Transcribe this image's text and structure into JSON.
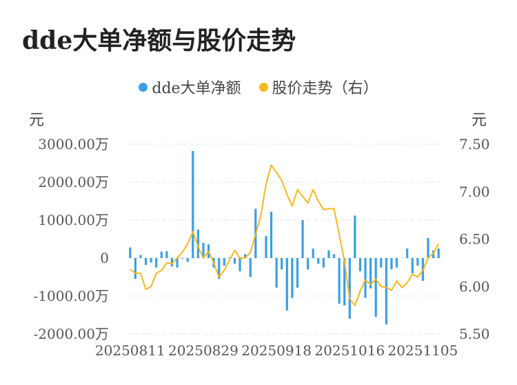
{
  "title": "dde大单净额与股价走势",
  "legend": [
    {
      "label": "dde大单净额",
      "color": "#3a9ee4"
    },
    {
      "label": "股价走势（右）",
      "color": "#f4b71f"
    }
  ],
  "left_unit": "元",
  "right_unit": "元",
  "chart_data": {
    "type": "bar",
    "title": "dde大单净额与股价走势",
    "y_left": {
      "unit": "元",
      "ylim": [
        -2000,
        3000
      ],
      "ticks": [
        3000,
        2000,
        1000,
        0,
        -1000,
        -2000
      ],
      "tick_labels": [
        "3000.00万",
        "2000.00万",
        "1000.00万",
        "0",
        "-1000.00万",
        "-2000.00万"
      ]
    },
    "y_right": {
      "unit": "元",
      "ylim": [
        5.5,
        7.5
      ],
      "ticks": [
        7.5,
        7.0,
        6.5,
        6.0,
        5.5
      ],
      "tick_labels": [
        "7.50",
        "7.00",
        "6.50",
        "6.00",
        "5.50"
      ]
    },
    "x_tick_labels": [
      "20250811",
      "20250829",
      "20250918",
      "20251016",
      "20251105"
    ],
    "x_tick_index": [
      0,
      14,
      28,
      42,
      56
    ],
    "grid": true,
    "legend_position": "top",
    "series": [
      {
        "name": "dde大单净额",
        "type": "bar",
        "color": "#3a9ee4",
        "values": [
          280,
          -550,
          80,
          -180,
          -120,
          -250,
          170,
          180,
          -220,
          -250,
          -20,
          -100,
          2820,
          750,
          400,
          360,
          -250,
          -550,
          -200,
          20,
          -150,
          -350,
          100,
          -500,
          1300,
          0,
          580,
          1220,
          -780,
          -300,
          -1380,
          -1050,
          -780,
          1000,
          -300,
          250,
          -150,
          -250,
          200,
          100,
          -1200,
          -1250,
          -1600,
          1120,
          -350,
          -1050,
          -800,
          -1550,
          -250,
          -1750,
          -300,
          -250,
          0,
          250,
          -400,
          -200,
          -600,
          530,
          200,
          250
        ]
      },
      {
        "name": "股价走势（右）",
        "type": "line",
        "color": "#f4b71f",
        "values": [
          6.18,
          6.14,
          6.14,
          5.97,
          6.0,
          6.14,
          6.17,
          6.25,
          6.24,
          6.3,
          6.36,
          6.45,
          6.58,
          6.42,
          6.3,
          6.37,
          6.25,
          6.1,
          6.17,
          6.28,
          6.38,
          6.3,
          6.3,
          6.36,
          6.55,
          6.75,
          7.08,
          7.28,
          7.2,
          7.12,
          6.97,
          6.85,
          7.02,
          6.95,
          6.88,
          7.02,
          6.9,
          6.81,
          6.82,
          6.82,
          6.55,
          6.27,
          5.87,
          5.8,
          5.95,
          6.07,
          6.02,
          6.08,
          6.0,
          5.99,
          5.96,
          6.06,
          5.99,
          6.04,
          6.13,
          6.1,
          6.17,
          6.3,
          6.35,
          6.45
        ]
      }
    ]
  }
}
